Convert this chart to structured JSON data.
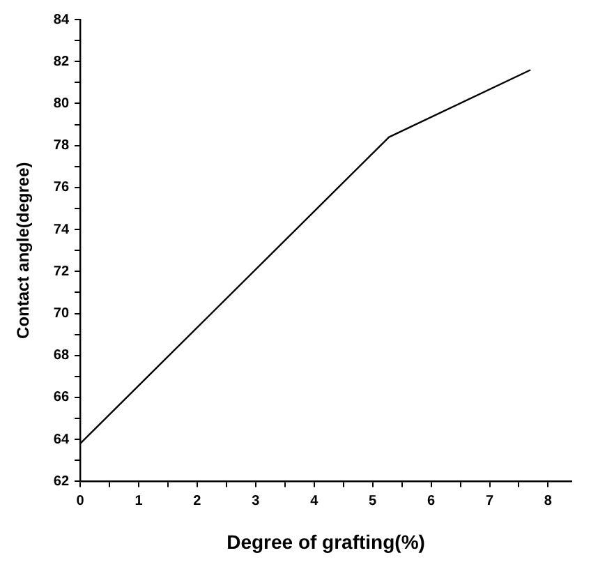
{
  "chart_data": {
    "type": "line",
    "xlabel": "Degree of grafting(%)",
    "ylabel": "Contact angle(degree)",
    "x": [
      0,
      5.28,
      7.7
    ],
    "series": [
      {
        "color": "#000000",
        "values": [
          63.8,
          78.4,
          81.6
        ]
      }
    ],
    "xlim": [
      0,
      8.4
    ],
    "xticks": [
      0,
      {
        "value": 0.5,
        "label": null
      },
      1,
      {
        "value": 1.5,
        "label": null
      },
      2,
      {
        "value": 2.5,
        "label": null
      },
      3,
      {
        "value": 3.5,
        "label": null
      },
      4,
      {
        "value": 4.5,
        "label": null
      },
      5,
      {
        "value": 5.5,
        "label": null
      },
      6,
      {
        "value": 6.5,
        "label": null
      },
      7,
      {
        "value": 7.5,
        "label": null
      },
      8
    ],
    "ylim": [
      62,
      84
    ],
    "yticks": [
      62,
      {
        "value": 63,
        "label": null
      },
      64,
      {
        "value": 65,
        "label": null
      },
      66,
      {
        "value": 67,
        "label": null
      },
      68,
      {
        "value": 69,
        "label": null
      },
      70,
      {
        "value": 71,
        "label": null
      },
      72,
      {
        "value": 73,
        "label": null
      },
      74,
      {
        "value": 75,
        "label": null
      },
      76,
      {
        "value": 77,
        "label": null
      },
      78,
      {
        "value": 79,
        "label": null
      },
      80,
      {
        "value": 81,
        "label": null
      },
      82,
      {
        "value": 83,
        "label": null
      },
      84
    ],
    "grid": false,
    "legend": false,
    "marker": "none",
    "line_style": "solid"
  }
}
